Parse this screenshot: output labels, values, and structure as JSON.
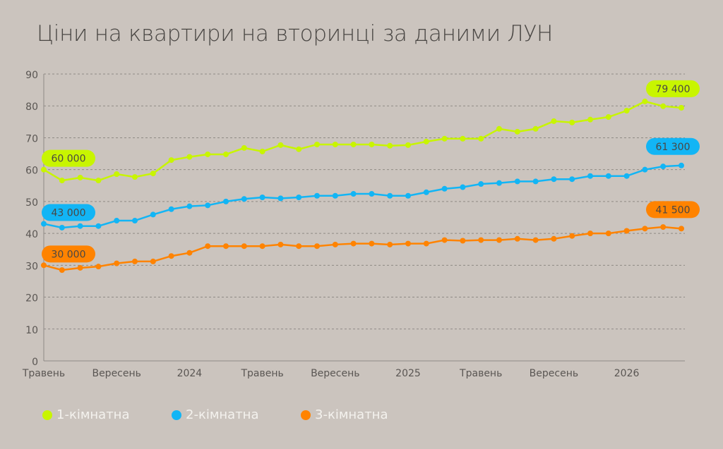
{
  "chart_data": {
    "type": "line",
    "title": "Ціни на квартири на вторинці за даними ЛУН",
    "ylim": [
      0,
      90
    ],
    "yticks": [
      0,
      10,
      20,
      30,
      40,
      50,
      60,
      70,
      80,
      90
    ],
    "grid": true,
    "legend_placement": "bottom-left",
    "xtick_labels": [
      "Травень",
      "Вересень",
      "2024",
      "Травень",
      "Вересень",
      "2025",
      "Травень",
      "Вересень",
      "2026"
    ],
    "xtick_months": [
      0,
      4,
      8,
      12,
      16,
      20,
      24,
      28,
      32
    ],
    "series": [
      {
        "name": "1-кімнатна",
        "color": "#c8f500",
        "end_labels": [
          "60 000",
          "79 400"
        ],
        "values": [
          60,
          56.6,
          57.5,
          56.6,
          58.6,
          57.7,
          58.8,
          63,
          64,
          64.8,
          64.8,
          66.8,
          65.7,
          67.7,
          66.4,
          67.9,
          67.9,
          67.9,
          67.9,
          67.5,
          67.7,
          68.8,
          69.7,
          69.7,
          69.7,
          72.8,
          71.9,
          72.8,
          75.2,
          74.8,
          75.7,
          76.5,
          78.5,
          81.4,
          79.9,
          79.4
        ]
      },
      {
        "name": "2-кімнатна",
        "color": "#12b5f5",
        "end_labels": [
          "43 000",
          "61 300"
        ],
        "values": [
          43,
          41.8,
          42.3,
          42.3,
          44,
          44,
          45.9,
          47.6,
          48.5,
          48.8,
          50,
          50.8,
          51.3,
          51,
          51.3,
          51.8,
          51.8,
          52.4,
          52.4,
          51.8,
          51.8,
          52.9,
          54,
          54.5,
          55.5,
          55.8,
          56.3,
          56.3,
          57,
          57,
          58,
          58,
          58,
          60,
          61,
          61.3
        ]
      },
      {
        "name": "3-кімнатна",
        "color": "#ff8300",
        "end_labels": [
          "30 000",
          "41 500"
        ],
        "values": [
          30,
          28.5,
          29.2,
          29.6,
          30.6,
          31.2,
          31.2,
          32.9,
          33.9,
          36,
          36,
          36,
          36,
          36.5,
          36,
          36,
          36.5,
          36.8,
          36.8,
          36.5,
          36.8,
          36.8,
          37.9,
          37.7,
          37.9,
          37.9,
          38.3,
          37.9,
          38.3,
          39.2,
          40,
          40,
          40.8,
          41.5,
          42,
          41.5
        ]
      }
    ]
  }
}
